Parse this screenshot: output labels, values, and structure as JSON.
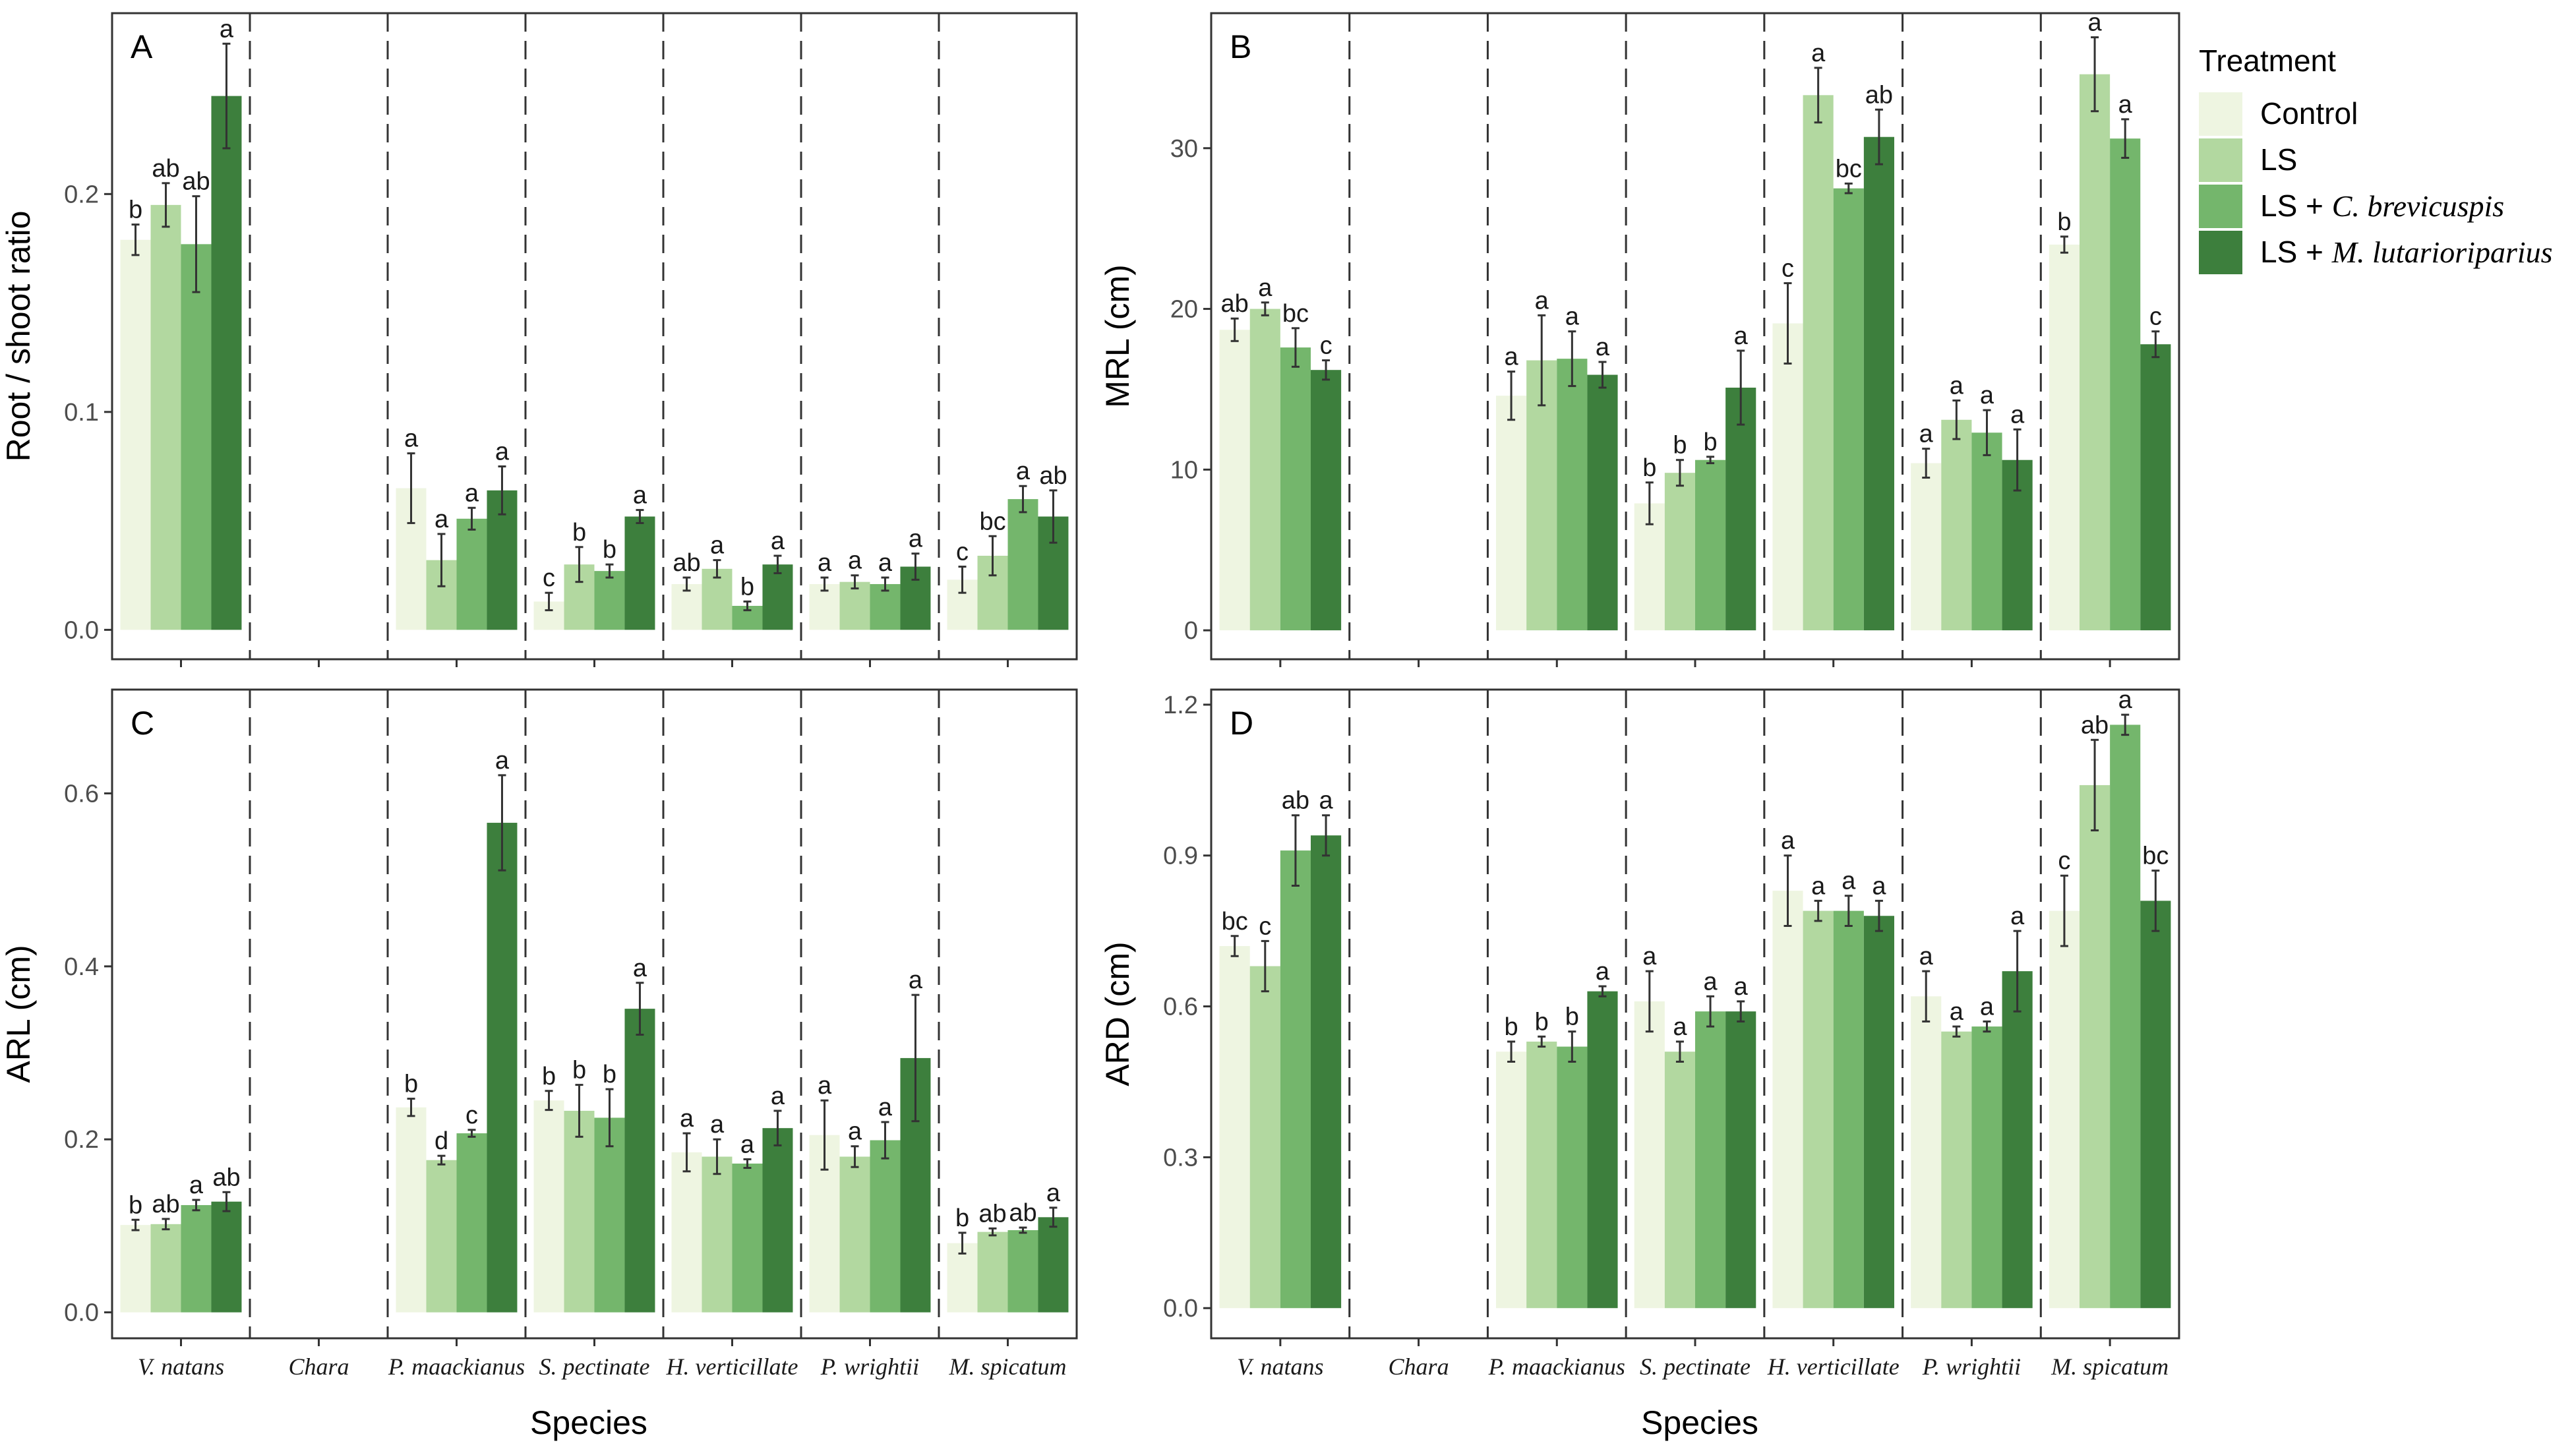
{
  "legend": {
    "title": "Treatment",
    "items": [
      {
        "key": "Control",
        "label": "Control",
        "italic": "",
        "color": "#eef5e1"
      },
      {
        "key": "LS",
        "label": "LS",
        "italic": "",
        "color": "#b2d8a0"
      },
      {
        "key": "LS+Cb",
        "label": "LS + ",
        "italic": "C. brevicuspis",
        "color": "#74b66c"
      },
      {
        "key": "LS+Ml",
        "label": "LS + ",
        "italic": "M. lutarioriparius",
        "color": "#3d7f3d"
      }
    ]
  },
  "x_axis_title": "Species",
  "chart_data": [
    {
      "type": "bar",
      "panel": "A",
      "ylabel": "Root / shoot ratio",
      "ylim": [
        -0.0135,
        0.283
      ],
      "yticks": [
        0.0,
        0.1,
        0.2
      ],
      "ytick_labels": [
        "0.0",
        "0.1",
        "0.2"
      ],
      "categories": [
        "V. natans",
        "Chara",
        "P. maackianus",
        "S. pectinate",
        "H. verticillate",
        "P. wrightii",
        "M. spicatum"
      ],
      "series": [
        {
          "name": "Control",
          "values": [
            0.179,
            null,
            0.065,
            0.013,
            0.021,
            0.021,
            0.023
          ],
          "errors": [
            0.007,
            null,
            0.016,
            0.004,
            0.003,
            0.003,
            0.006
          ],
          "letters": [
            "b",
            "",
            "a",
            "c",
            "ab",
            "a",
            "c"
          ]
        },
        {
          "name": "LS",
          "values": [
            0.195,
            null,
            0.032,
            0.03,
            0.028,
            0.022,
            0.034
          ],
          "errors": [
            0.01,
            null,
            0.012,
            0.008,
            0.004,
            0.003,
            0.009
          ],
          "letters": [
            "ab",
            "",
            "a",
            "b",
            "a",
            "a",
            "bc"
          ]
        },
        {
          "name": "LS + C. brevicuspis",
          "values": [
            0.177,
            null,
            0.051,
            0.027,
            0.011,
            0.021,
            0.06
          ],
          "errors": [
            0.022,
            null,
            0.005,
            0.003,
            0.002,
            0.003,
            0.006
          ],
          "letters": [
            "ab",
            "",
            "a",
            "b",
            "b",
            "a",
            "a"
          ]
        },
        {
          "name": "LS + M. lutarioriparius",
          "values": [
            0.245,
            null,
            0.064,
            0.052,
            0.03,
            0.029,
            0.052
          ],
          "errors": [
            0.024,
            null,
            0.011,
            0.003,
            0.004,
            0.006,
            0.012
          ],
          "letters": [
            "a",
            "",
            "a",
            "a",
            "a",
            "a",
            "ab"
          ]
        }
      ]
    },
    {
      "type": "bar",
      "panel": "B",
      "ylabel": "MRL (cm)",
      "ylim": [
        -1.8,
        38.4
      ],
      "yticks": [
        0,
        10,
        20,
        30
      ],
      "ytick_labels": [
        "0",
        "10",
        "20",
        "30"
      ],
      "categories": [
        "V. natans",
        "Chara",
        "P. maackianus",
        "S. pectinate",
        "H. verticillate",
        "P. wrightii",
        "M. spicatum"
      ],
      "series": [
        {
          "name": "Control",
          "values": [
            18.7,
            null,
            14.6,
            7.9,
            19.1,
            10.4,
            24.0
          ],
          "errors": [
            0.7,
            null,
            1.5,
            1.3,
            2.5,
            0.9,
            0.5
          ],
          "letters": [
            "ab",
            "",
            "a",
            "b",
            "c",
            "a",
            "b"
          ]
        },
        {
          "name": "LS",
          "values": [
            20.0,
            null,
            16.8,
            9.8,
            33.3,
            13.1,
            34.6
          ],
          "errors": [
            0.4,
            null,
            2.8,
            0.8,
            1.7,
            1.2,
            2.3
          ],
          "letters": [
            "a",
            "",
            "a",
            "b",
            "a",
            "a",
            "a"
          ]
        },
        {
          "name": "LS + C. brevicuspis",
          "values": [
            17.6,
            null,
            16.9,
            10.6,
            27.5,
            12.3,
            30.6
          ],
          "errors": [
            1.2,
            null,
            1.7,
            0.2,
            0.3,
            1.4,
            1.2
          ],
          "letters": [
            "bc",
            "",
            "a",
            "b",
            "bc",
            "a",
            "a"
          ]
        },
        {
          "name": "LS + M. lutarioriparius",
          "values": [
            16.2,
            null,
            15.9,
            15.1,
            30.7,
            10.6,
            17.8
          ],
          "errors": [
            0.6,
            null,
            0.8,
            2.3,
            1.7,
            1.9,
            0.8
          ],
          "letters": [
            "c",
            "",
            "a",
            "a",
            "ab",
            "a",
            "c"
          ]
        }
      ]
    },
    {
      "type": "bar",
      "panel": "C",
      "ylabel": "ARL (cm)",
      "ylim": [
        -0.03,
        0.72
      ],
      "yticks": [
        0.0,
        0.2,
        0.4,
        0.6
      ],
      "ytick_labels": [
        "0.0",
        "0.2",
        "0.4",
        "0.6"
      ],
      "categories": [
        "V. natans",
        "Chara",
        "P. maackianus",
        "S. pectinate",
        "H. verticillate",
        "P. wrightii",
        "M. spicatum"
      ],
      "series": [
        {
          "name": "Control",
          "values": [
            0.101,
            null,
            0.237,
            0.245,
            0.185,
            0.205,
            0.08
          ],
          "errors": [
            0.006,
            null,
            0.01,
            0.011,
            0.022,
            0.04,
            0.012
          ],
          "letters": [
            "b",
            "",
            "b",
            "b",
            "a",
            "a",
            "b"
          ]
        },
        {
          "name": "LS",
          "values": [
            0.102,
            null,
            0.176,
            0.233,
            0.18,
            0.18,
            0.093
          ],
          "errors": [
            0.006,
            null,
            0.005,
            0.03,
            0.02,
            0.012,
            0.004
          ],
          "letters": [
            "ab",
            "",
            "d",
            "b",
            "a",
            "a",
            "ab"
          ]
        },
        {
          "name": "LS + C. brevicuspis",
          "values": [
            0.124,
            null,
            0.207,
            0.225,
            0.172,
            0.199,
            0.095
          ],
          "errors": [
            0.006,
            null,
            0.004,
            0.033,
            0.005,
            0.021,
            0.003
          ],
          "letters": [
            "a",
            "",
            "c",
            "b",
            "a",
            "a",
            "ab"
          ]
        },
        {
          "name": "LS + M. lutarioriparius",
          "values": [
            0.128,
            null,
            0.566,
            0.351,
            0.213,
            0.294,
            0.11
          ],
          "errors": [
            0.011,
            null,
            0.055,
            0.03,
            0.02,
            0.073,
            0.011
          ],
          "letters": [
            "ab",
            "",
            "a",
            "a",
            "a",
            "a",
            "a"
          ]
        }
      ]
    },
    {
      "type": "bar",
      "panel": "D",
      "ylabel": "ARD (cm)",
      "ylim": [
        -0.06,
        1.23
      ],
      "yticks": [
        0.0,
        0.3,
        0.6,
        0.9,
        1.2
      ],
      "ytick_labels": [
        "0.0",
        "0.3",
        "0.6",
        "0.9",
        "1.2"
      ],
      "categories": [
        "V. natans",
        "Chara",
        "P. maackianus",
        "S. pectinate",
        "H. verticillate",
        "P. wrightii",
        "M. spicatum"
      ],
      "series": [
        {
          "name": "Control",
          "values": [
            0.72,
            null,
            0.51,
            0.61,
            0.83,
            0.62,
            0.79
          ],
          "errors": [
            0.02,
            null,
            0.02,
            0.06,
            0.07,
            0.05,
            0.07
          ],
          "letters": [
            "bc",
            "",
            "b",
            "a",
            "a",
            "a",
            "c"
          ]
        },
        {
          "name": "LS",
          "values": [
            0.68,
            null,
            0.53,
            0.51,
            0.79,
            0.55,
            1.04
          ],
          "errors": [
            0.05,
            null,
            0.01,
            0.02,
            0.02,
            0.01,
            0.09
          ],
          "letters": [
            "c",
            "",
            "b",
            "a",
            "a",
            "a",
            "ab"
          ]
        },
        {
          "name": "LS + C. brevicuspis",
          "values": [
            0.91,
            null,
            0.52,
            0.59,
            0.79,
            0.56,
            1.16
          ],
          "errors": [
            0.07,
            null,
            0.03,
            0.03,
            0.03,
            0.01,
            0.02
          ],
          "letters": [
            "ab",
            "",
            "b",
            "a",
            "a",
            "a",
            "a"
          ]
        },
        {
          "name": "LS + M. lutarioriparius",
          "values": [
            0.94,
            null,
            0.63,
            0.59,
            0.78,
            0.67,
            0.81
          ],
          "errors": [
            0.04,
            null,
            0.01,
            0.02,
            0.03,
            0.08,
            0.06
          ],
          "letters": [
            "a",
            "",
            "a",
            "a",
            "a",
            "a",
            "bc"
          ]
        }
      ]
    }
  ]
}
